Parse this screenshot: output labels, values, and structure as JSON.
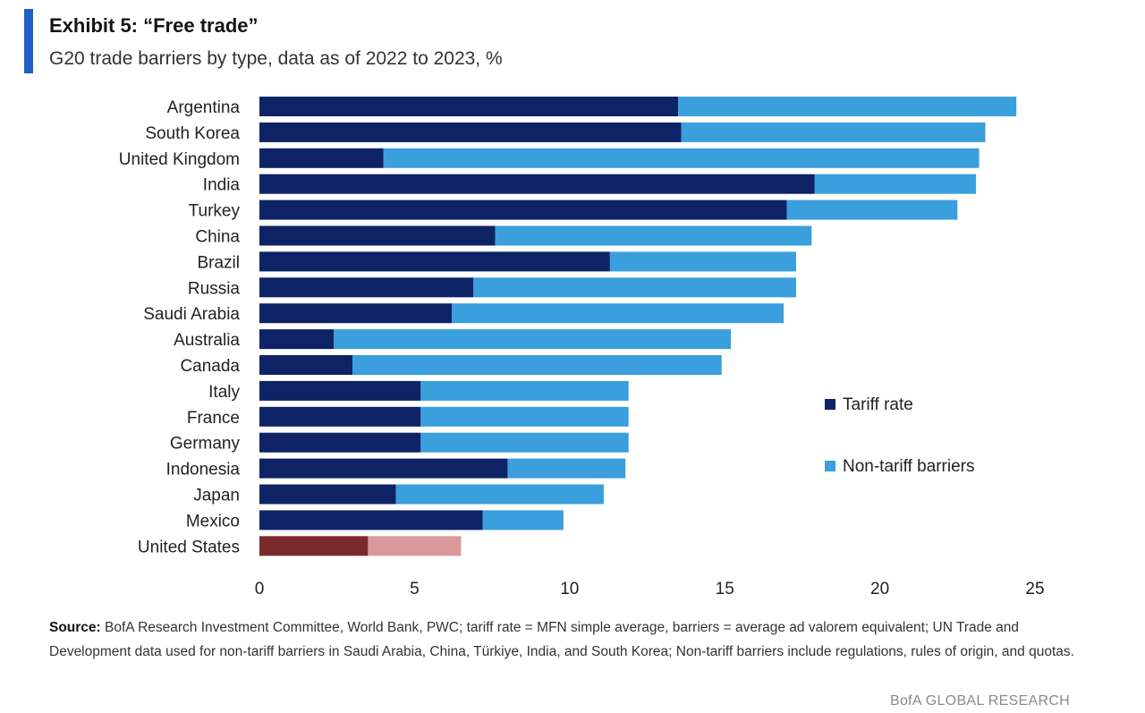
{
  "header": {
    "title": "Exhibit 5: “Free trade”",
    "subtitle": "G20 trade barriers by type, data as of 2022 to 2023, %"
  },
  "chart_data": {
    "type": "bar",
    "orientation": "horizontal",
    "stacked": true,
    "title": "Exhibit 5: “Free trade”",
    "subtitle": "G20 trade barriers by type, data as of 2022 to 2023, %",
    "categories": [
      "Argentina",
      "South Korea",
      "United Kingdom",
      "India",
      "Turkey",
      "China",
      "Brazil",
      "Russia",
      "Saudi Arabia",
      "Australia",
      "Canada",
      "Italy",
      "France",
      "Germany",
      "Indonesia",
      "Japan",
      "Mexico",
      "United States"
    ],
    "series": [
      {
        "name": "Tariff rate",
        "color": "#0d2366",
        "values": [
          13.5,
          13.6,
          4.0,
          17.9,
          17.0,
          7.6,
          11.3,
          6.9,
          6.2,
          2.4,
          3.0,
          5.2,
          5.2,
          5.2,
          8.0,
          4.4,
          7.2,
          3.5
        ]
      },
      {
        "name": "Non-tariff barriers",
        "color": "#3a9fdc",
        "values": [
          10.9,
          9.8,
          19.2,
          5.2,
          5.5,
          10.2,
          6.0,
          10.4,
          10.7,
          12.8,
          11.9,
          6.7,
          6.7,
          6.7,
          3.8,
          6.7,
          2.6,
          3.0
        ]
      }
    ],
    "highlight": {
      "category": "United States",
      "colors": [
        "#7a2a2a",
        "#d9999a"
      ]
    },
    "xlim": [
      0,
      25
    ],
    "xticks": [
      0,
      5,
      10,
      15,
      20,
      25
    ],
    "xlabel": "",
    "ylabel": "",
    "grid": false,
    "legend": {
      "placement": "right",
      "entries": [
        "Tariff rate",
        "Non-tariff barriers"
      ]
    }
  },
  "footer": {
    "source_label": "Source:",
    "source_text": " BofA Research Investment Committee, World Bank, PWC; tariff rate = MFN simple average, barriers = average ad valorem equivalent; UN Trade and Development data used for non-tariff barriers in Saudi Arabia, China, Türkiye, India, and South Korea; Non-tariff barriers include regulations, rules of origin, and quotas.",
    "brand": "BofA GLOBAL RESEARCH"
  }
}
